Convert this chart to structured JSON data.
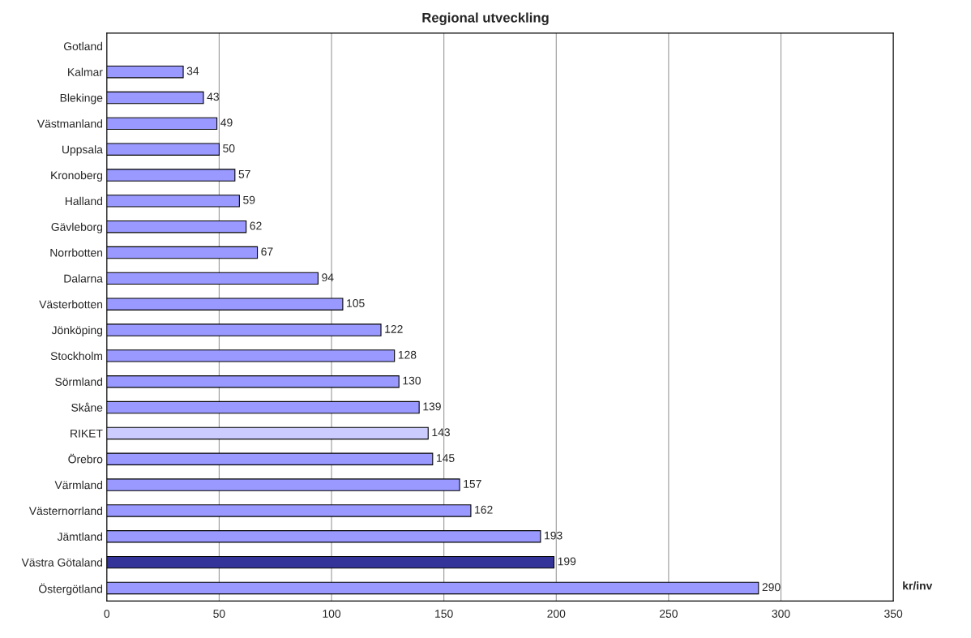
{
  "chart_data": {
    "type": "bar",
    "orientation": "horizontal",
    "title": "Regional utveckling",
    "xlabel": "kr/inv",
    "categories": [
      "Gotland",
      "Kalmar",
      "Blekinge",
      "Västmanland",
      "Uppsala",
      "Kronoberg",
      "Halland",
      "Gävleborg",
      "Norrbotten",
      "Dalarna",
      "Västerbotten",
      "Jönköping",
      "Stockholm",
      "Sörmland",
      "Skåne",
      "RIKET",
      "Örebro",
      "Värmland",
      "Västernorrland",
      "Jämtland",
      "Västra Götaland",
      "Östergötland"
    ],
    "values": [
      null,
      34,
      43,
      49,
      50,
      57,
      59,
      62,
      67,
      94,
      105,
      122,
      128,
      130,
      139,
      143,
      145,
      157,
      162,
      193,
      199,
      290
    ],
    "value_labels": [
      null,
      "34",
      "43",
      "49",
      "50",
      "57",
      "59",
      "62",
      "67",
      "94",
      "105",
      "122",
      "128",
      "130",
      "139",
      "143",
      "145",
      "157",
      "162",
      "193",
      "199",
      "290"
    ],
    "colors": [
      "#9999ff",
      "#9999ff",
      "#9999ff",
      "#9999ff",
      "#9999ff",
      "#9999ff",
      "#9999ff",
      "#9999ff",
      "#9999ff",
      "#9999ff",
      "#9999ff",
      "#9999ff",
      "#9999ff",
      "#9999ff",
      "#9999ff",
      "#ccccff",
      "#9999ff",
      "#9999ff",
      "#9999ff",
      "#9999ff",
      "#333399",
      "#9999ff"
    ],
    "xlim": [
      0,
      350
    ],
    "xticks": [
      0,
      50,
      100,
      150,
      200,
      250,
      300,
      350
    ],
    "grid": "x"
  }
}
